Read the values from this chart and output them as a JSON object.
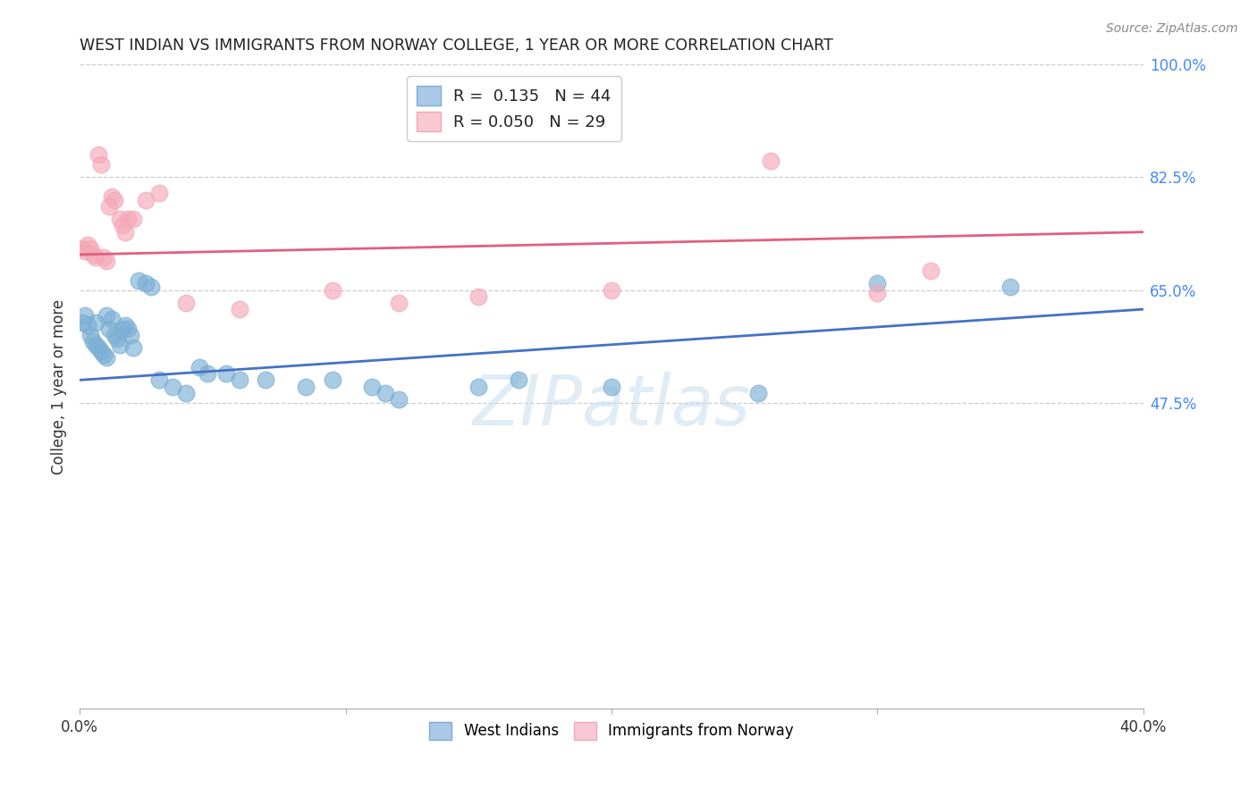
{
  "title": "WEST INDIAN VS IMMIGRANTS FROM NORWAY COLLEGE, 1 YEAR OR MORE CORRELATION CHART",
  "source": "Source: ZipAtlas.com",
  "ylabel": "College, 1 year or more",
  "xlim": [
    0.0,
    0.4
  ],
  "ylim": [
    0.0,
    1.0
  ],
  "xticks": [
    0.0,
    0.1,
    0.2,
    0.3,
    0.4
  ],
  "xticklabels": [
    "0.0%",
    "",
    "",
    "",
    "40.0%"
  ],
  "yticks_right": [
    0.475,
    0.65,
    0.825,
    1.0
  ],
  "ytick_right_labels": [
    "47.5%",
    "65.0%",
    "82.5%",
    "100.0%"
  ],
  "grid_color": "#cccccc",
  "background_color": "#ffffff",
  "watermark_text": "ZIPatlas",
  "R_blue": "0.135",
  "N_blue": "44",
  "R_pink": "0.050",
  "N_pink": "29",
  "blue_color": "#7bafd4",
  "pink_color": "#f4a8b8",
  "blue_line_color": "#4472c4",
  "pink_line_color": "#e06080",
  "blue_x": [
    0.001,
    0.002,
    0.003,
    0.004,
    0.005,
    0.006,
    0.006,
    0.007,
    0.008,
    0.009,
    0.01,
    0.01,
    0.011,
    0.012,
    0.013,
    0.014,
    0.015,
    0.016,
    0.017,
    0.018,
    0.019,
    0.02,
    0.022,
    0.025,
    0.027,
    0.03,
    0.035,
    0.04,
    0.045,
    0.048,
    0.055,
    0.06,
    0.07,
    0.085,
    0.095,
    0.11,
    0.115,
    0.12,
    0.15,
    0.165,
    0.2,
    0.255,
    0.3,
    0.35
  ],
  "blue_y": [
    0.6,
    0.61,
    0.595,
    0.58,
    0.57,
    0.565,
    0.6,
    0.56,
    0.555,
    0.55,
    0.545,
    0.61,
    0.59,
    0.605,
    0.58,
    0.575,
    0.565,
    0.59,
    0.595,
    0.59,
    0.58,
    0.56,
    0.665,
    0.66,
    0.655,
    0.51,
    0.5,
    0.49,
    0.53,
    0.52,
    0.52,
    0.51,
    0.51,
    0.5,
    0.51,
    0.5,
    0.49,
    0.48,
    0.5,
    0.51,
    0.5,
    0.49,
    0.66,
    0.655
  ],
  "pink_x": [
    0.001,
    0.002,
    0.003,
    0.004,
    0.005,
    0.006,
    0.007,
    0.008,
    0.009,
    0.01,
    0.011,
    0.012,
    0.013,
    0.015,
    0.016,
    0.017,
    0.018,
    0.02,
    0.025,
    0.03,
    0.04,
    0.06,
    0.095,
    0.12,
    0.15,
    0.2,
    0.26,
    0.3,
    0.32
  ],
  "pink_y": [
    0.715,
    0.71,
    0.72,
    0.715,
    0.705,
    0.7,
    0.86,
    0.845,
    0.7,
    0.695,
    0.78,
    0.795,
    0.79,
    0.76,
    0.75,
    0.74,
    0.76,
    0.76,
    0.79,
    0.8,
    0.63,
    0.62,
    0.65,
    0.63,
    0.64,
    0.65,
    0.85,
    0.645,
    0.68
  ],
  "blue_line_x0": 0.0,
  "blue_line_x1": 0.4,
  "blue_line_y0": 0.51,
  "blue_line_y1": 0.62,
  "pink_line_x0": 0.0,
  "pink_line_x1": 0.4,
  "pink_line_y0": 0.705,
  "pink_line_y1": 0.74
}
